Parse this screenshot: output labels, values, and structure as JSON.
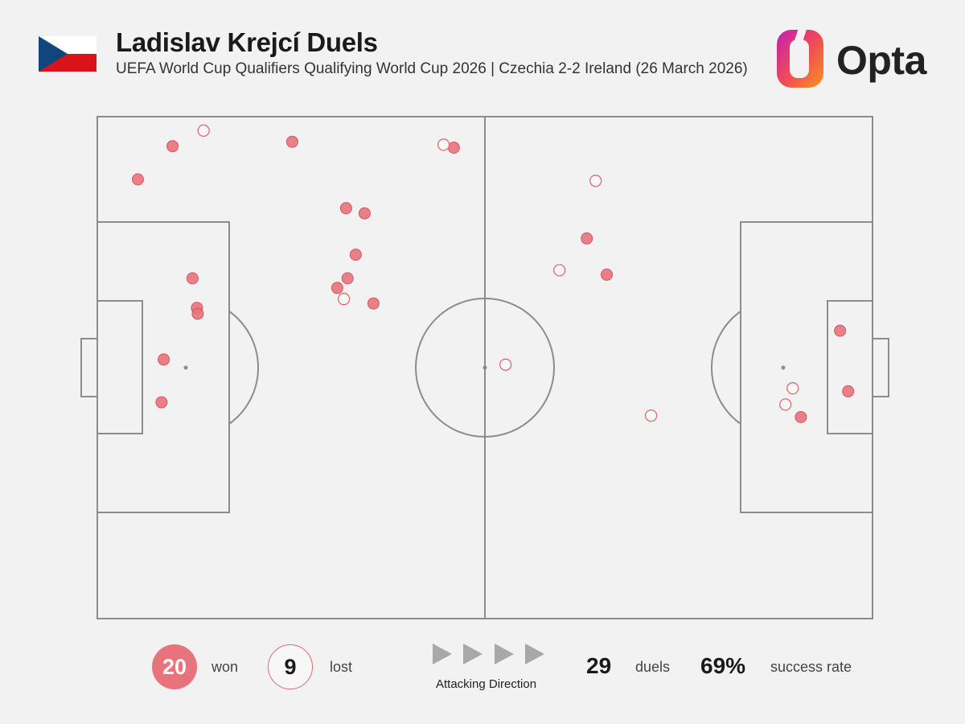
{
  "header": {
    "title": "Ladislav Krejcí Duels",
    "subtitle": "UEFA World Cup Qualifiers Qualifying World Cup 2026 | Czechia 2-2 Ireland (26 March 2026)",
    "brand": "Opta",
    "flag_colors": [
      "#ffffff",
      "#d7141a",
      "#11457e"
    ]
  },
  "legend": {
    "won_count": "20",
    "won_label": "won",
    "lost_count": "9",
    "lost_label": "lost",
    "attacking_direction_label": "Attacking Direction",
    "total_value": "29",
    "total_label": "duels",
    "rate_value": "69%",
    "rate_label": "success rate"
  },
  "colors": {
    "won_fill": "#e8737c",
    "won_stroke": "#d9535f",
    "lost_stroke": "#e06a74",
    "pitch_lines": "#8c8c8c",
    "background": "#f2f2f2"
  },
  "chart_data": {
    "type": "scatter",
    "x_range": [
      0,
      105
    ],
    "y_range": [
      0,
      68
    ],
    "attacking_direction": "left-to-right",
    "series": [
      {
        "name": "won",
        "points": [
          [
            10.2,
            64.0
          ],
          [
            5.5,
            59.5
          ],
          [
            26.4,
            64.6
          ],
          [
            48.3,
            63.8
          ],
          [
            33.7,
            55.6
          ],
          [
            36.2,
            54.9
          ],
          [
            35.0,
            49.3
          ],
          [
            33.9,
            46.1
          ],
          [
            32.5,
            44.8
          ],
          [
            37.4,
            42.7
          ],
          [
            12.9,
            46.1
          ],
          [
            13.5,
            42.1
          ],
          [
            13.6,
            41.3
          ],
          [
            9.0,
            35.1
          ],
          [
            8.7,
            29.3
          ],
          [
            66.3,
            51.5
          ],
          [
            69.0,
            46.6
          ],
          [
            100.6,
            39.0
          ],
          [
            101.7,
            30.8
          ],
          [
            95.3,
            27.3
          ]
        ]
      },
      {
        "name": "lost",
        "points": [
          [
            14.4,
            66.1
          ],
          [
            46.9,
            64.2
          ],
          [
            33.4,
            43.3
          ],
          [
            67.5,
            59.3
          ],
          [
            62.6,
            47.2
          ],
          [
            55.3,
            34.4
          ],
          [
            75.0,
            27.5
          ],
          [
            94.2,
            31.2
          ],
          [
            93.2,
            29.0
          ]
        ]
      }
    ]
  }
}
